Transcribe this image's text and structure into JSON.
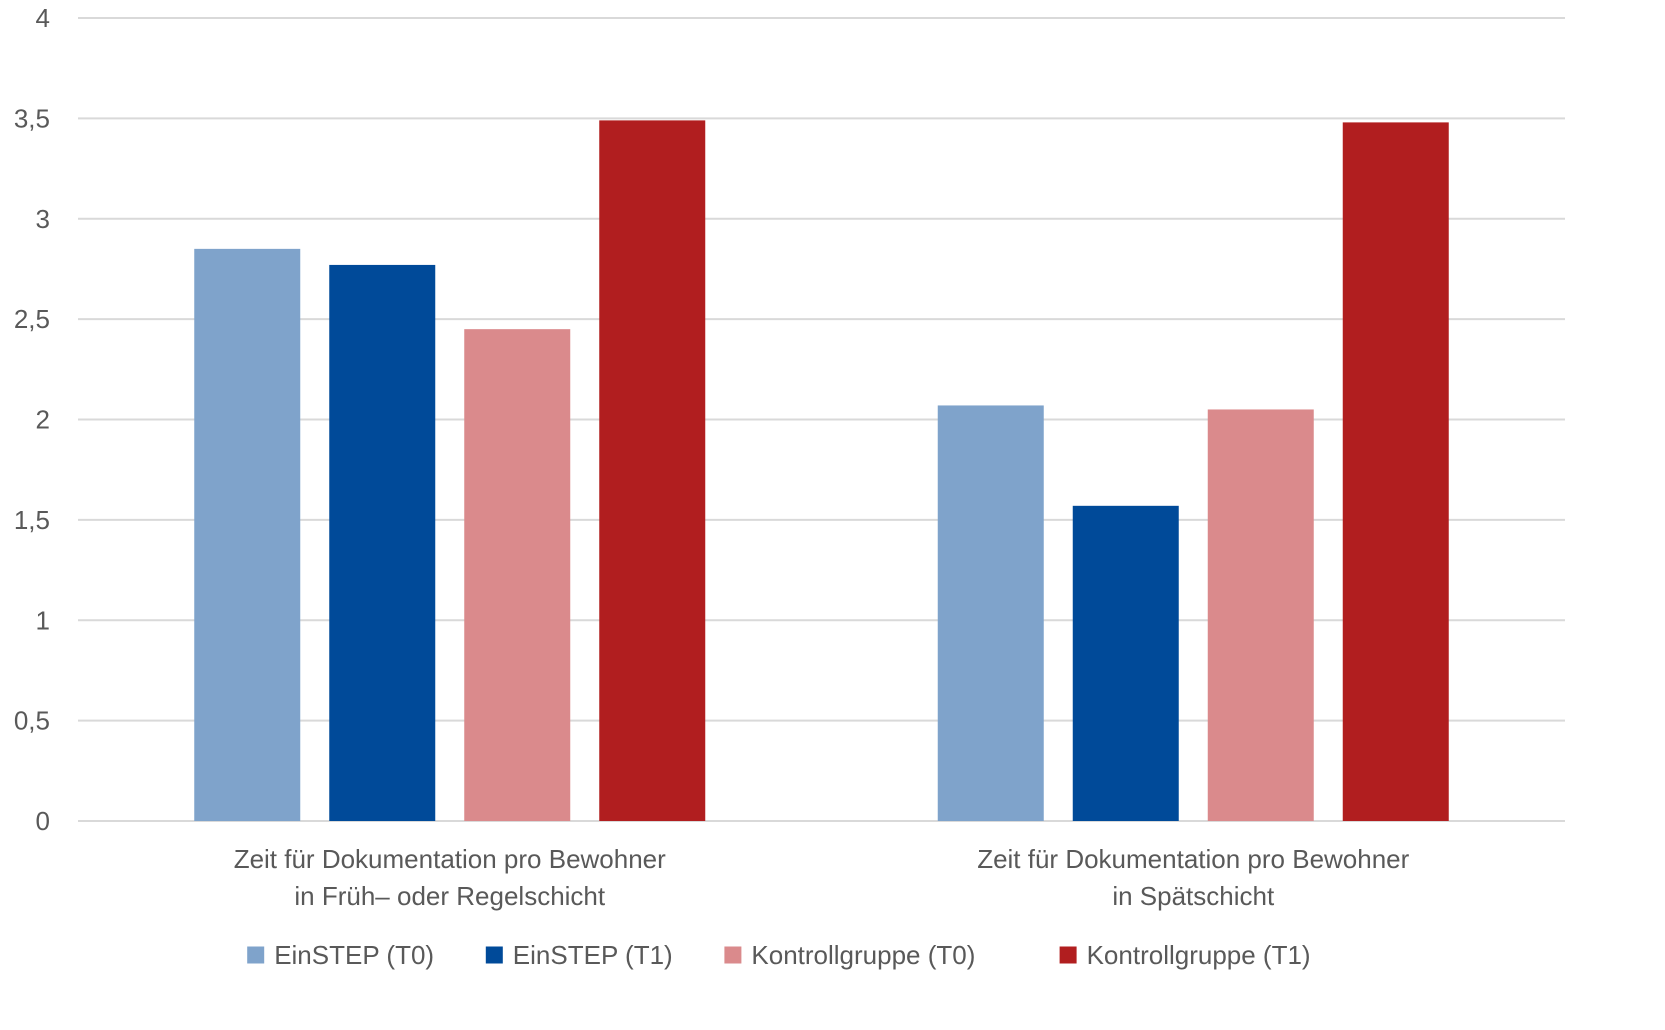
{
  "chart_data": {
    "type": "bar",
    "title": "",
    "xlabel": "",
    "ylabel": "",
    "ylim": [
      0,
      4
    ],
    "y_ticks": [
      "0",
      "0,5",
      "1",
      "1,5",
      "2",
      "2,5",
      "3",
      "3,5",
      "4"
    ],
    "grid": true,
    "legend_position": "bottom",
    "categories": [
      [
        "Zeit für Dokumentation pro Bewohner",
        "in Früh– oder Regelschicht"
      ],
      [
        "Zeit für Dokumentation pro Bewohner",
        "in Spätschicht"
      ]
    ],
    "series": [
      {
        "name": "EinSTEP (T0)",
        "color": "#7fa3cb",
        "values": [
          2.85,
          2.07
        ]
      },
      {
        "name": "EinSTEP (T1)",
        "color": "#004a99",
        "values": [
          2.77,
          1.57
        ]
      },
      {
        "name": "Kontrollgruppe (T0)",
        "color": "#da8a8c",
        "values": [
          2.45,
          2.05
        ]
      },
      {
        "name": "Kontrollgruppe (T1)",
        "color": "#b11e1f",
        "values": [
          3.49,
          3.48
        ]
      }
    ]
  }
}
